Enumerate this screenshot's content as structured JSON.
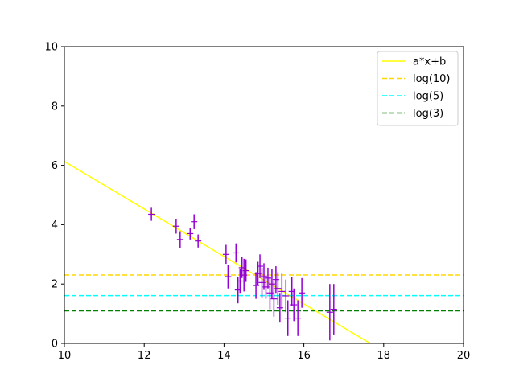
{
  "chart_data": {
    "type": "scatter",
    "title": "",
    "xlabel": "",
    "ylabel": "",
    "xlim": [
      10,
      20
    ],
    "ylim": [
      0,
      10
    ],
    "xticks": [
      "10",
      "12",
      "14",
      "16",
      "18",
      "20"
    ],
    "yticks": [
      "0",
      "2",
      "4",
      "6",
      "8",
      "10"
    ],
    "grid": false,
    "legend_position": "top-right",
    "colors": {
      "data": "#9400d3",
      "fit": "#ffff00",
      "log10": "#ffd700",
      "log5": "#00ffff",
      "log3": "#008000"
    },
    "fit_line": {
      "name": "a*x+b",
      "slope": -0.8,
      "intercept": 14.13
    },
    "hlines": [
      {
        "name": "log(10)",
        "y": 2.3026,
        "color": "#ffd700"
      },
      {
        "name": "log(5)",
        "y": 1.6094,
        "color": "#00ffff"
      },
      {
        "name": "log(3)",
        "y": 1.0986,
        "color": "#008000"
      }
    ],
    "points": [
      {
        "x": 12.18,
        "y": 4.35,
        "yerr": 0.22
      },
      {
        "x": 12.8,
        "y": 3.95,
        "yerr": 0.25
      },
      {
        "x": 12.9,
        "y": 3.5,
        "yerr": 0.28
      },
      {
        "x": 13.15,
        "y": 3.7,
        "yerr": 0.2
      },
      {
        "x": 13.25,
        "y": 4.1,
        "yerr": 0.25
      },
      {
        "x": 13.35,
        "y": 3.45,
        "yerr": 0.22
      },
      {
        "x": 14.05,
        "y": 3.0,
        "yerr": 0.32
      },
      {
        "x": 14.1,
        "y": 2.25,
        "yerr": 0.4
      },
      {
        "x": 14.3,
        "y": 3.05,
        "yerr": 0.32
      },
      {
        "x": 14.35,
        "y": 1.8,
        "yerr": 0.45
      },
      {
        "x": 14.4,
        "y": 2.1,
        "yerr": 0.4
      },
      {
        "x": 14.45,
        "y": 2.55,
        "yerr": 0.35
      },
      {
        "x": 14.5,
        "y": 2.3,
        "yerr": 0.55
      },
      {
        "x": 14.55,
        "y": 2.45,
        "yerr": 0.38
      },
      {
        "x": 14.8,
        "y": 1.95,
        "yerr": 0.45
      },
      {
        "x": 14.85,
        "y": 2.35,
        "yerr": 0.4
      },
      {
        "x": 14.9,
        "y": 2.6,
        "yerr": 0.4
      },
      {
        "x": 14.95,
        "y": 2.05,
        "yerr": 0.5
      },
      {
        "x": 15.0,
        "y": 2.25,
        "yerr": 0.45
      },
      {
        "x": 15.05,
        "y": 1.9,
        "yerr": 0.4
      },
      {
        "x": 15.1,
        "y": 2.2,
        "yerr": 0.35
      },
      {
        "x": 15.15,
        "y": 1.7,
        "yerr": 0.55
      },
      {
        "x": 15.2,
        "y": 2.0,
        "yerr": 0.5
      },
      {
        "x": 15.25,
        "y": 1.5,
        "yerr": 0.6
      },
      {
        "x": 15.3,
        "y": 2.15,
        "yerr": 0.45
      },
      {
        "x": 15.35,
        "y": 1.85,
        "yerr": 0.55
      },
      {
        "x": 15.4,
        "y": 1.2,
        "yerr": 0.5
      },
      {
        "x": 15.45,
        "y": 1.75,
        "yerr": 0.6
      },
      {
        "x": 15.55,
        "y": 1.6,
        "yerr": 0.55
      },
      {
        "x": 15.6,
        "y": 0.85,
        "yerr": 0.6
      },
      {
        "x": 15.7,
        "y": 1.75,
        "yerr": 0.5
      },
      {
        "x": 15.75,
        "y": 1.3,
        "yerr": 0.55
      },
      {
        "x": 15.85,
        "y": 0.85,
        "yerr": 0.6
      },
      {
        "x": 15.95,
        "y": 1.7,
        "yerr": 0.5
      },
      {
        "x": 16.65,
        "y": 1.05,
        "yerr": 0.95
      },
      {
        "x": 16.75,
        "y": 1.15,
        "yerr": 0.85
      }
    ]
  }
}
